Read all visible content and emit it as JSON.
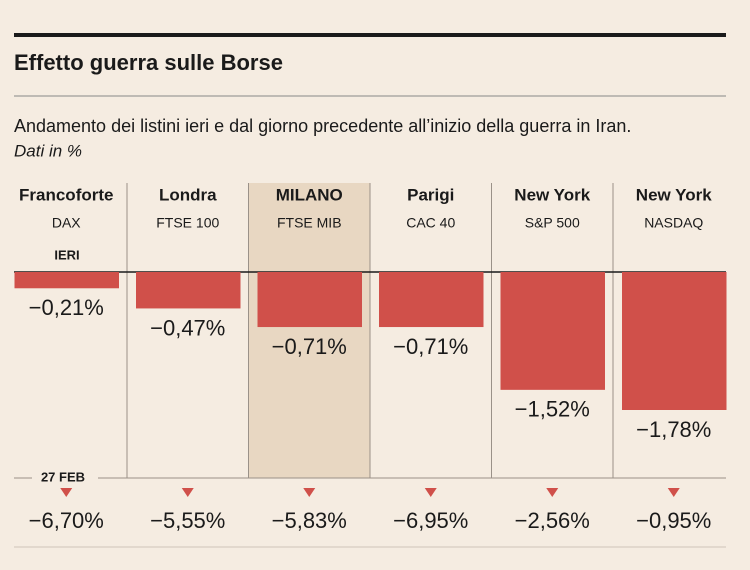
{
  "chart_data": {
    "type": "bar",
    "title": "Effetto guerra sulle Borse",
    "subtitle": "Andamento dei listini ieri e dal giorno precedente all’inizio della guerra in Iran.",
    "note": "Dati in %",
    "categories": [
      "Francoforte",
      "Londra",
      "MILANO",
      "Parigi",
      "New York",
      "New York"
    ],
    "indices": [
      "DAX",
      "FTSE 100",
      "FTSE MIB",
      "CAC 40",
      "S&P 500",
      "NASDAQ"
    ],
    "highlight": "MILANO",
    "series": [
      {
        "name": "IERI",
        "color": "#d0504a",
        "values": [
          -0.21,
          -0.47,
          -0.71,
          -0.71,
          -1.52,
          -1.78
        ],
        "value_labels": [
          "−0,21%",
          "−0,47%",
          "−0,71%",
          "−0,71%",
          "−1,52%",
          "−1,78%"
        ]
      },
      {
        "name": "27 FEB",
        "color": "#d0504a",
        "values": [
          -6.7,
          -5.55,
          -5.83,
          -6.95,
          -2.56,
          -0.95
        ],
        "value_labels": [
          "−6,70%",
          "−5,55%",
          "−5,83%",
          "−6,95%",
          "−2,56%",
          "−0,95%"
        ]
      }
    ]
  }
}
